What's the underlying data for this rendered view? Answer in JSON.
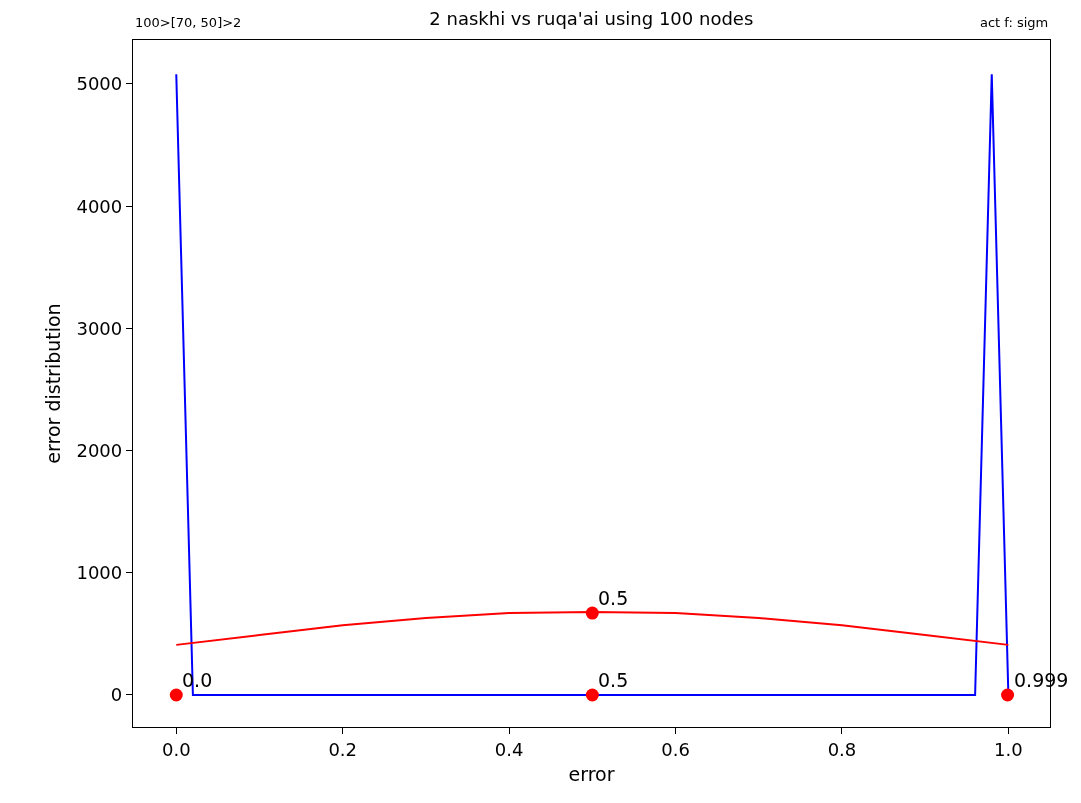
{
  "chart_data": {
    "type": "line",
    "title": "2 naskhi vs ruqa'ai using 100 nodes",
    "xlabel": "error",
    "ylabel": "error distribution",
    "xlim": [
      -0.052,
      1.05
    ],
    "xticks": [
      {
        "value": 0,
        "label": "0.0"
      },
      0.2,
      0.4,
      0.6,
      0.8,
      {
        "value": 1,
        "label": "1.0"
      }
    ],
    "ylim": [
      -262,
      5360
    ],
    "yticks": [
      0,
      1000,
      2000,
      3000,
      4000,
      5000
    ],
    "grid": false,
    "series": [
      {
        "color": "#0000ff",
        "x": [
          0,
          0.02,
          0.96,
          0.98,
          1.0
        ],
        "values": [
          5080,
          0,
          0,
          5080,
          0
        ]
      },
      {
        "color": "#ff0000",
        "x": [
          0,
          0.1,
          0.2,
          0.3,
          0.4,
          0.5,
          0.6,
          0.7,
          0.8,
          0.9,
          1.0
        ],
        "values": [
          410,
          490,
          570,
          630,
          670,
          680,
          670,
          630,
          570,
          490,
          410
        ]
      },
      {
        "type": "scatter",
        "color": "#ff0000",
        "marker": "circle",
        "x": [
          0,
          0.5,
          0.5,
          0.999
        ],
        "values": [
          0,
          670,
          0,
          0
        ]
      }
    ],
    "annotations": [
      "100>[70, 50]>2",
      "act f: sigm",
      {
        "text": "0.0",
        "x": 0,
        "y": 0
      },
      {
        "text": "0.5",
        "x": 0.5,
        "y": 670
      },
      {
        "text": "0.5",
        "x": 0.5,
        "y": 0
      },
      {
        "text": "0.999",
        "x": 0.999,
        "y": 0
      }
    ]
  }
}
